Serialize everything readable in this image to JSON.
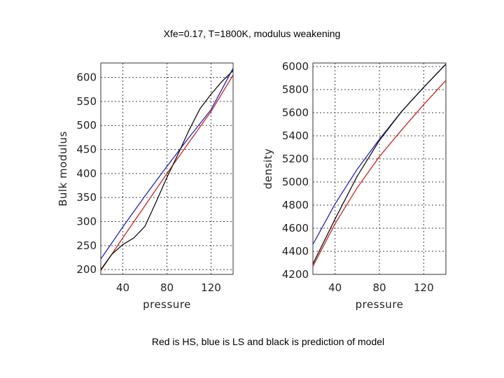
{
  "title": "Xfe=0.17, T=1800K, modulus weakening",
  "caption": "Red is HS, blue is LS and black is prediction of model",
  "colors": {
    "HS": "#cc2222",
    "LS": "#2222bb",
    "model": "#111111"
  },
  "chart_data": [
    {
      "type": "line",
      "xlabel": "pressure",
      "ylabel": "Bulk modulus",
      "xlim": [
        20,
        140
      ],
      "ylim": [
        190,
        630
      ],
      "xticks": [
        40,
        80,
        120
      ],
      "yticks": [
        200,
        250,
        300,
        350,
        400,
        450,
        500,
        550,
        600
      ],
      "grid": true,
      "series": [
        {
          "key": "LS",
          "x": [
            20,
            40,
            60,
            80,
            100,
            120,
            140
          ],
          "y": [
            222,
            289,
            353,
            415,
            475,
            533,
            619
          ]
        },
        {
          "key": "HS",
          "x": [
            20,
            40,
            60,
            80,
            100,
            120,
            140
          ],
          "y": [
            198,
            266,
            333,
            400,
            465,
            529,
            605
          ]
        },
        {
          "key": "model",
          "x": [
            20,
            30,
            40,
            50,
            60,
            70,
            80,
            90,
            100,
            110,
            120,
            130,
            140
          ],
          "y": [
            200,
            232,
            252,
            266,
            290,
            340,
            392,
            440,
            490,
            535,
            565,
            592,
            614
          ]
        }
      ]
    },
    {
      "type": "line",
      "xlabel": "pressure",
      "ylabel": "density",
      "xlim": [
        20,
        140
      ],
      "ylim": [
        4200,
        6030
      ],
      "xticks": [
        40,
        80,
        120
      ],
      "yticks": [
        4200,
        4400,
        4600,
        4800,
        5000,
        5200,
        5400,
        5600,
        5800,
        6000
      ],
      "grid": true,
      "series": [
        {
          "key": "LS",
          "x": [
            20,
            40,
            60,
            80,
            100,
            120,
            140
          ],
          "y": [
            4460,
            4810,
            5110,
            5370,
            5610,
            5820,
            6020
          ]
        },
        {
          "key": "HS",
          "x": [
            20,
            40,
            60,
            80,
            100,
            120,
            140
          ],
          "y": [
            4270,
            4640,
            4950,
            5220,
            5450,
            5670,
            5880
          ]
        },
        {
          "key": "model",
          "x": [
            20,
            40,
            60,
            80,
            100,
            120,
            140
          ],
          "y": [
            4290,
            4680,
            5050,
            5360,
            5610,
            5820,
            6020
          ]
        }
      ]
    }
  ]
}
